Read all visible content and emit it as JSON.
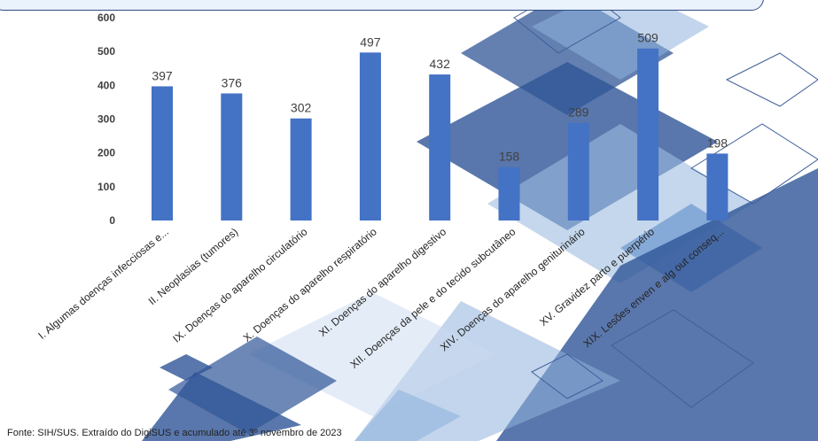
{
  "source_note": "Fonte: SIH/SUS. Extraído do DigiSUS e acumulado até 3º novembro de 2023",
  "colors": {
    "bar": "#4472c4",
    "tick_text": "#404040",
    "decor_dark": "#2f5597",
    "decor_light": "#8fb2dc",
    "title_border": "#2f4e86"
  },
  "chart_data": {
    "type": "bar",
    "title": "",
    "xlabel": "",
    "ylabel": "",
    "ylim": [
      0,
      600
    ],
    "yticks": [
      0,
      100,
      200,
      300,
      400,
      500,
      600
    ],
    "grid": false,
    "legend": "none",
    "categories": [
      "I. Algumas doenças infecciosas e...",
      "II. Neoplasias (tumores)",
      "IX. Doenças do aparelho circulatório",
      "X. Doenças do aparelho respiratório",
      "XI. Doenças do aparelho digestivo",
      "XII. Doenças da pele e do tecido subcutâneo",
      "XIV. Doenças do aparelho geniturinário",
      "XV. Gravidez parto e puerpério",
      "XIX. Lesões enven e alg out conseq..."
    ],
    "values": [
      397,
      376,
      302,
      497,
      432,
      158,
      289,
      509,
      198
    ]
  }
}
